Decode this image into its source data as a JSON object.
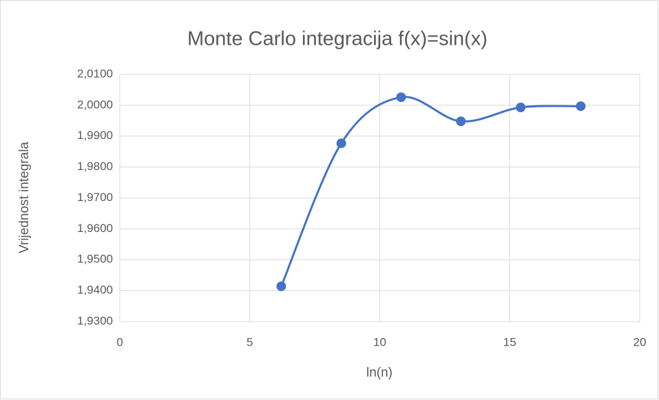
{
  "chart_data": {
    "type": "scatter-smooth",
    "title": "Monte Carlo integracija f(x)=sin(x)",
    "x_label": "ln(n)",
    "y_label": "Vrijednost integrala",
    "series": [
      {
        "name": "Vrijednost integrala",
        "color": "#4472c4",
        "x": [
          6.21,
          8.52,
          10.82,
          13.12,
          15.42,
          17.73
        ],
        "values": [
          1.9414,
          1.9877,
          2.0026,
          1.9948,
          1.9993,
          1.9997
        ]
      }
    ],
    "xlim": [
      0,
      20
    ],
    "xticks": [
      0,
      5,
      10,
      15,
      20
    ],
    "ylim": [
      1.93,
      2.01
    ],
    "yticks": [
      {
        "value": 1.93,
        "label": "1,9300"
      },
      {
        "value": 1.94,
        "label": "1,9400"
      },
      {
        "value": 1.95,
        "label": "1,9500"
      },
      {
        "value": 1.96,
        "label": "1,9600"
      },
      {
        "value": 1.97,
        "label": "1,9700"
      },
      {
        "value": 1.98,
        "label": "1,9800"
      },
      {
        "value": 1.99,
        "label": "1,9900"
      },
      {
        "value": 2.0,
        "label": "2,0000"
      },
      {
        "value": 2.01,
        "label": "2,0100"
      }
    ],
    "grid": true
  }
}
